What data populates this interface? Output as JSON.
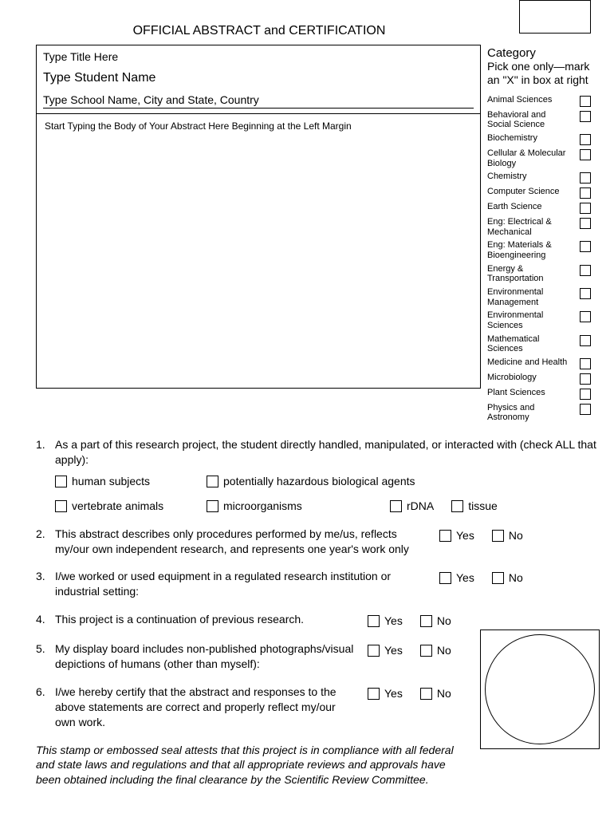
{
  "page_title": "OFFICIAL ABSTRACT and CERTIFICATION",
  "header": {
    "title_placeholder": "Type Title Here",
    "student_placeholder": "Type Student Name",
    "school_placeholder": "Type School Name, City and State, Country"
  },
  "abstract_placeholder": "Start Typing the Body of Your Abstract Here Beginning at the Left Margin",
  "category": {
    "heading": "Category",
    "sub": "Pick one only—mark an \"X\" in box at right",
    "items": [
      "Animal Sciences",
      "Behavioral and Social Science",
      "Biochemistry",
      "Cellular & Molecular Biology",
      "Chemistry",
      "Computer Science",
      "Earth  Science",
      "Eng: Electrical & Mechanical",
      "Eng: Materials & Bioengineering",
      "Energy & Transportation",
      "Environmental Management",
      "Environmental Sciences",
      "Mathematical Sciences",
      "Medicine and Health",
      "Microbiology",
      "Plant Sciences",
      "Physics and Astronomy"
    ]
  },
  "q1": {
    "text": "As a part of this research project, the student directly handled, manipulated, or interacted with (check ALL that apply):",
    "opts": {
      "human": "human subjects",
      "hazbio": "potentially hazardous biological agents",
      "vert": "vertebrate animals",
      "micro": "microorganisms",
      "rdna": "rDNA",
      "tissue": "tissue"
    }
  },
  "q2": "This abstract describes only procedures performed by me/us, reflects my/our own independent research, and represents one year's work only",
  "q3": "I/we worked or used equipment in a regulated research institution or industrial setting:",
  "q4": "This project is a continuation of previous research.",
  "q5": "My display board includes non-published photographs/visual depictions of humans (other than myself):",
  "q6": "I/we hereby certify that the abstract and responses to the above statements are correct and properly reflect my/our own work.",
  "yes": "Yes",
  "no": "No",
  "footer": "This stamp or embossed seal attests that this project is in compliance with all federal and state laws and regulations and that all appropriate reviews and approvals have been obtained including the final clearance by the Scientific Review Committee."
}
